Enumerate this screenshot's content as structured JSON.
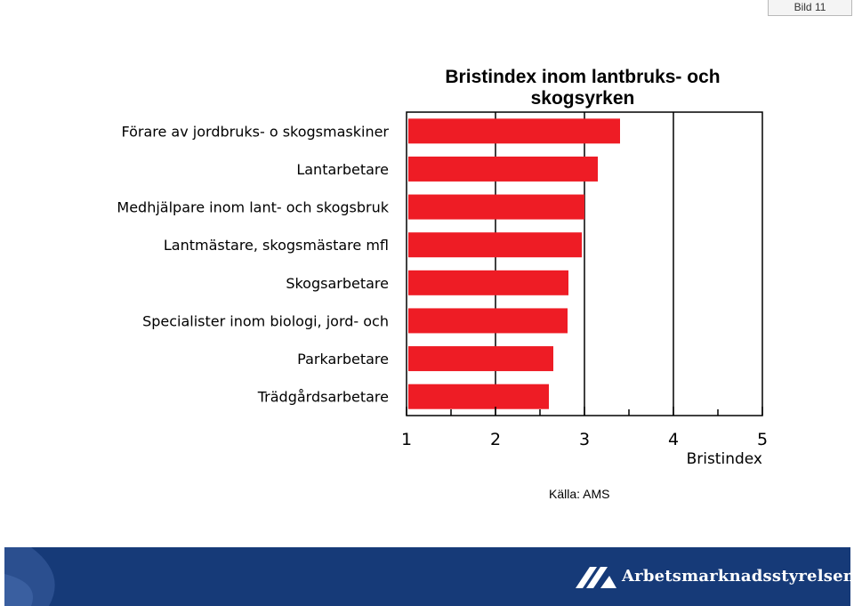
{
  "slide_label": "Bild 11",
  "source": "Källa: AMS",
  "footer": {
    "brand": "Arbetsmarknadsstyrelsen"
  },
  "colors": {
    "bar": "#ee1c25",
    "footer_bg": "#163a78",
    "gridline": "#000000"
  },
  "chart_data": {
    "type": "bar",
    "orientation": "horizontal",
    "title": "Bristindex inom lantbruks- och skogsyrken",
    "xlabel": "Bristindex",
    "ylabel": "",
    "xlim": [
      1,
      5
    ],
    "xticks": [
      "1",
      "2",
      "3",
      "4",
      "5"
    ],
    "grid": "vertical",
    "categories": [
      "Förare av jordbruks- o skogsmaskiner",
      "Lantarbetare",
      "Medhjälpare inom lant- och skogsbruk",
      "Lantmästare, skogsmästare mfl",
      "Skogsarbetare",
      "Specialister inom biologi, jord- och",
      "Parkarbetare",
      "Trädgårdsarbetare"
    ],
    "values": [
      3.4,
      3.15,
      3.0,
      2.97,
      2.82,
      2.81,
      2.65,
      2.6
    ]
  }
}
